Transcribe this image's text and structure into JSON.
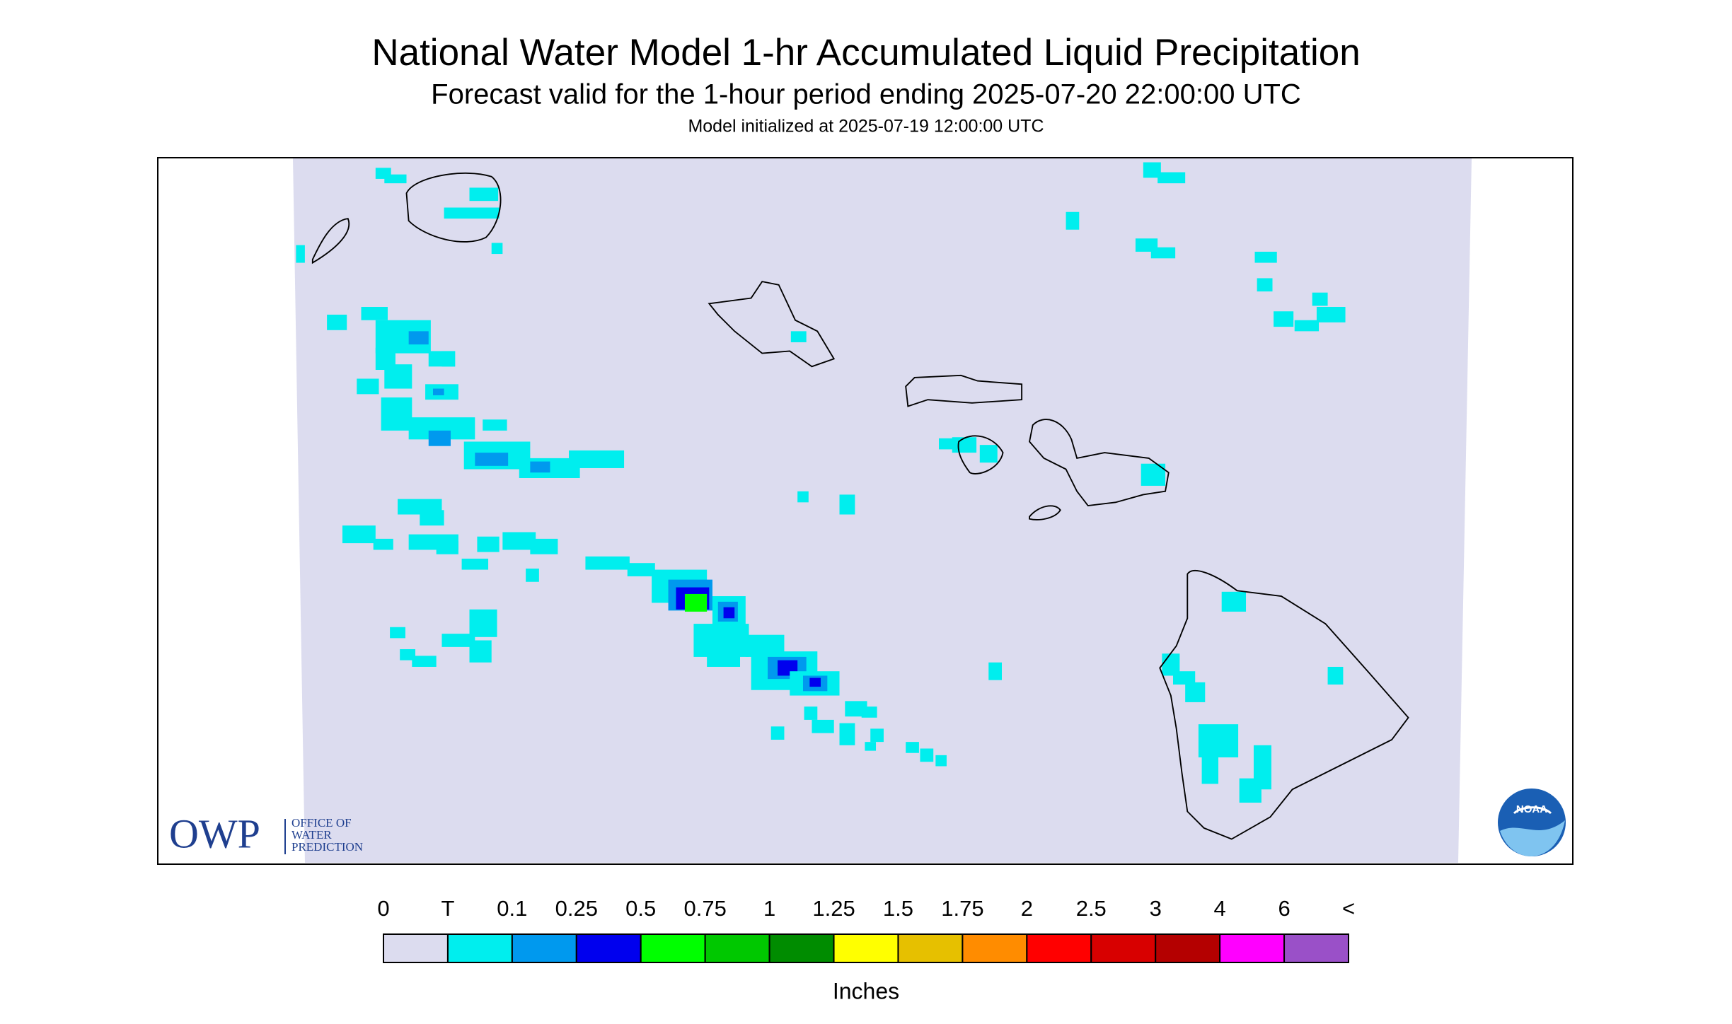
{
  "header": {
    "title": "National Water Model 1-hr Accumulated Liquid Precipitation",
    "subtitle": "Forecast valid for the 1-hour period ending 2025-07-20 22:00:00 UTC",
    "initialized": "Model initialized at 2025-07-19 12:00:00 UTC"
  },
  "legend": {
    "labels": [
      "0",
      "T",
      "0.1",
      "0.25",
      "0.5",
      "0.75",
      "1",
      "1.25",
      "1.5",
      "1.75",
      "2",
      "2.5",
      "3",
      "4",
      "6",
      "<"
    ],
    "colors": [
      "#dcdcef",
      "#00eeee",
      "#0099ee",
      "#0000ee",
      "#00ff00",
      "#00c800",
      "#008c00",
      "#ffff00",
      "#e6c000",
      "#ff8c00",
      "#ff0000",
      "#d80000",
      "#b40000",
      "#ff00ff",
      "#9a50c8"
    ],
    "unit": "Inches"
  },
  "logos": {
    "owp": {
      "acronym": "OWP",
      "name": [
        "OFFICE OF",
        "WATER",
        "PREDICTION"
      ]
    },
    "noaa": "NOAA"
  }
}
